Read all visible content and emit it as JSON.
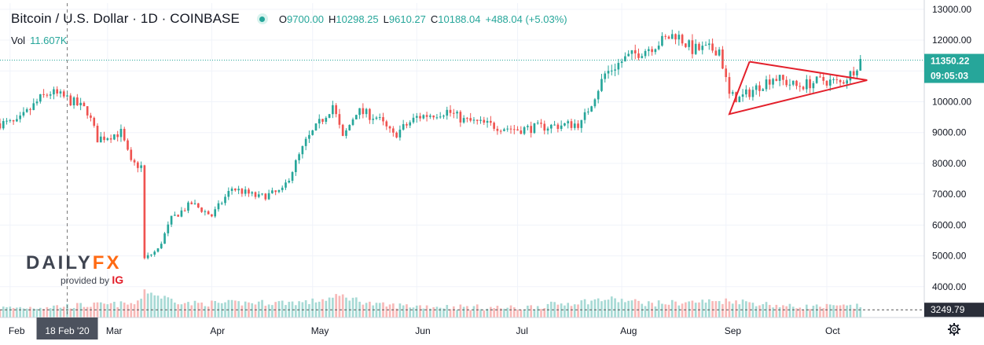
{
  "header": {
    "symbol": "Bitcoin / U.S. Dollar · 1D · COINBASE",
    "open_label": "O",
    "open": "9700.00",
    "high_label": "H",
    "high": "10298.25",
    "low_label": "L",
    "low": "9610.27",
    "close_label": "C",
    "close": "10188.04",
    "change": "+488.04 (+5.03%)"
  },
  "volume": {
    "label": "Vol",
    "value": "11.607K"
  },
  "watermark": {
    "brand_a": "DAILY",
    "brand_b": "FX",
    "provided_by": "provided by",
    "ig": "IG"
  },
  "colors": {
    "up": "#26a69a",
    "down": "#ef5350",
    "vol_up": "#a7dad5",
    "vol_down": "#f7b9b8",
    "trendline": "#e3202b",
    "crosshair": "#777777"
  },
  "icons": {
    "settings": "gear-icon"
  },
  "crosshair_label": "18 Feb '20",
  "price_badge": {
    "price": "11350.22",
    "countdown": "09:05:03"
  },
  "volume_badge": "3249.79",
  "chart_data": {
    "type": "candlestick",
    "ylim": [
      3000,
      13200
    ],
    "y_ticks": [
      4000,
      5000,
      6000,
      7000,
      8000,
      9000,
      10000,
      11000,
      12000,
      13000
    ],
    "y_tick_labels": [
      "4000.00",
      "5000.00",
      "6000.00",
      "7000.00",
      "8000.00",
      "9000.00",
      "10000.00",
      "11000.00",
      "12000.00",
      "13000.00"
    ],
    "x_ticks": [
      {
        "date": "2020-02-01",
        "label": "Feb"
      },
      {
        "date": "2020-03-01",
        "label": "Mar"
      },
      {
        "date": "2020-04-01",
        "label": "Apr"
      },
      {
        "date": "2020-05-01",
        "label": "May"
      },
      {
        "date": "2020-06-01",
        "label": "Jun"
      },
      {
        "date": "2020-07-01",
        "label": "Jul"
      },
      {
        "date": "2020-08-01",
        "label": "Aug"
      },
      {
        "date": "2020-09-01",
        "label": "Sep"
      },
      {
        "date": "2020-10-01",
        "label": "Oct"
      }
    ],
    "crosshair_date": "2020-02-18",
    "last_price": 11350.22,
    "volume_marker": 3249.79,
    "close_path": [
      [
        "2020-01-29",
        9300
      ],
      [
        "2020-02-03",
        9300
      ],
      [
        "2020-02-10",
        10100
      ],
      [
        "2020-02-13",
        10300
      ],
      [
        "2020-02-18",
        10100
      ],
      [
        "2020-02-24",
        9700
      ],
      [
        "2020-02-27",
        8800
      ],
      [
        "2020-03-05",
        9000
      ],
      [
        "2020-03-08",
        8000
      ],
      [
        "2020-03-11",
        7900
      ],
      [
        "2020-03-12",
        4900
      ],
      [
        "2020-03-16",
        5200
      ],
      [
        "2020-03-20",
        6200
      ],
      [
        "2020-03-26",
        6700
      ],
      [
        "2020-04-01",
        6300
      ],
      [
        "2020-04-07",
        7200
      ],
      [
        "2020-04-15",
        6900
      ],
      [
        "2020-04-22",
        7100
      ],
      [
        "2020-04-29",
        8700
      ],
      [
        "2020-05-07",
        9900
      ],
      [
        "2020-05-10",
        8800
      ],
      [
        "2020-05-14",
        9700
      ],
      [
        "2020-05-20",
        9500
      ],
      [
        "2020-05-25",
        8900
      ],
      [
        "2020-06-01",
        9500
      ],
      [
        "2020-06-10",
        9700
      ],
      [
        "2020-06-15",
        9400
      ],
      [
        "2020-06-25",
        9200
      ],
      [
        "2020-07-01",
        9100
      ],
      [
        "2020-07-10",
        9200
      ],
      [
        "2020-07-20",
        9300
      ],
      [
        "2020-07-27",
        10900
      ],
      [
        "2020-08-02",
        11400
      ],
      [
        "2020-08-10",
        11800
      ],
      [
        "2020-08-17",
        12200
      ],
      [
        "2020-08-22",
        11700
      ],
      [
        "2020-08-30",
        11700
      ],
      [
        "2020-09-02",
        10200
      ],
      [
        "2020-09-05",
        10100
      ],
      [
        "2020-09-15",
        10800
      ],
      [
        "2020-09-22",
        10500
      ],
      [
        "2020-09-30",
        10700
      ],
      [
        "2020-10-05",
        10600
      ],
      [
        "2020-10-08",
        10900
      ],
      [
        "2020-10-11",
        11350
      ]
    ],
    "volume_profile": [
      [
        "2020-01-29",
        3300
      ],
      [
        "2020-03-10",
        3450
      ],
      [
        "2020-03-12",
        3900
      ],
      [
        "2020-03-16",
        3700
      ],
      [
        "2020-03-25",
        3450
      ],
      [
        "2020-04-30",
        3500
      ],
      [
        "2020-05-10",
        3700
      ],
      [
        "2020-05-20",
        3400
      ],
      [
        "2020-07-01",
        3300
      ],
      [
        "2020-07-28",
        3600
      ],
      [
        "2020-08-10",
        3450
      ],
      [
        "2020-09-03",
        3550
      ],
      [
        "2020-09-20",
        3350
      ],
      [
        "2020-10-11",
        3350
      ]
    ],
    "triangle": [
      [
        "2020-09-08",
        11300
      ],
      [
        "2020-10-13",
        10700
      ],
      [
        "2020-09-02",
        9600
      ]
    ]
  }
}
